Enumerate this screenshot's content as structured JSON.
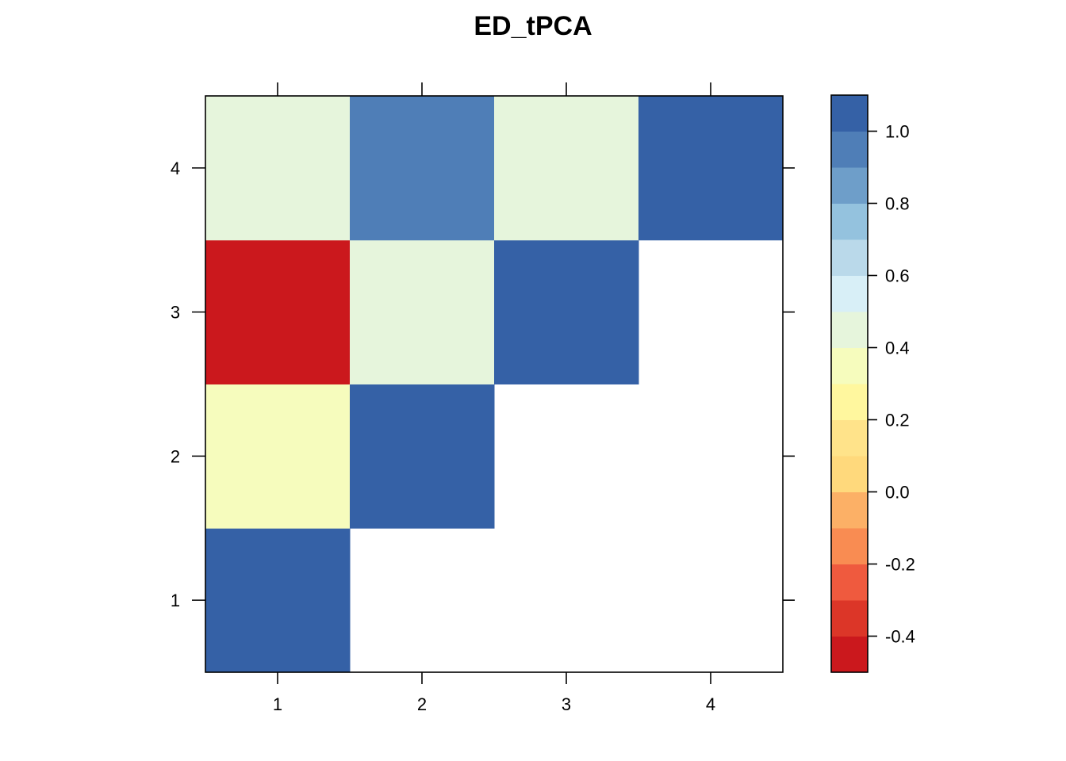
{
  "chart_data": {
    "type": "heatmap",
    "title": "ED_tPCA",
    "x_categories": [
      "1",
      "2",
      "3",
      "4"
    ],
    "y_categories": [
      "1",
      "2",
      "3",
      "4"
    ],
    "cells": [
      {
        "x": "1",
        "y": "1",
        "value": 1.0
      },
      {
        "x": "1",
        "y": "2",
        "value": 0.35
      },
      {
        "x": "1",
        "y": "3",
        "value": -0.45
      },
      {
        "x": "1",
        "y": "4",
        "value": 0.45
      },
      {
        "x": "2",
        "y": "2",
        "value": 1.0
      },
      {
        "x": "2",
        "y": "3",
        "value": 0.45
      },
      {
        "x": "2",
        "y": "4",
        "value": 0.95
      },
      {
        "x": "3",
        "y": "3",
        "value": 1.0
      },
      {
        "x": "3",
        "y": "4",
        "value": 0.45
      },
      {
        "x": "4",
        "y": "4",
        "value": 1.0
      }
    ],
    "colorbar": {
      "range": [
        -0.5,
        1.1
      ],
      "breaks": [
        -0.5,
        -0.4,
        -0.3,
        -0.2,
        -0.1,
        0.0,
        0.1,
        0.2,
        0.3,
        0.4,
        0.5,
        0.6,
        0.7,
        0.8,
        0.9,
        1.0,
        1.1
      ],
      "colors": [
        "#cb181d",
        "#dc3628",
        "#ef5a3e",
        "#f98c52",
        "#fcb066",
        "#ffd97c",
        "#ffe38a",
        "#fff79e",
        "#f6fcbd",
        "#e6f5dc",
        "#d8eff7",
        "#bad9ea",
        "#94c2de",
        "#6e9ec9",
        "#4f7eb7",
        "#3561a6"
      ],
      "tick_values": [
        -0.4,
        -0.2,
        0.0,
        0.2,
        0.4,
        0.6,
        0.8,
        1.0
      ],
      "tick_labels": [
        "-0.4",
        "-0.2",
        "0.0",
        "0.2",
        "0.4",
        "0.6",
        "0.8",
        "1.0"
      ]
    },
    "colors": {
      "cell_1_1": "#3561a6",
      "cell_1_2": "#f6fcbd",
      "cell_1_3": "#cb181d",
      "cell_1_4": "#e6f5dc",
      "cell_2_2": "#3561a6",
      "cell_2_3": "#e6f5dc",
      "cell_2_4": "#4f7eb7",
      "cell_3_3": "#3561a6",
      "cell_3_4": "#e6f5dc",
      "cell_4_4": "#3561a6"
    }
  }
}
